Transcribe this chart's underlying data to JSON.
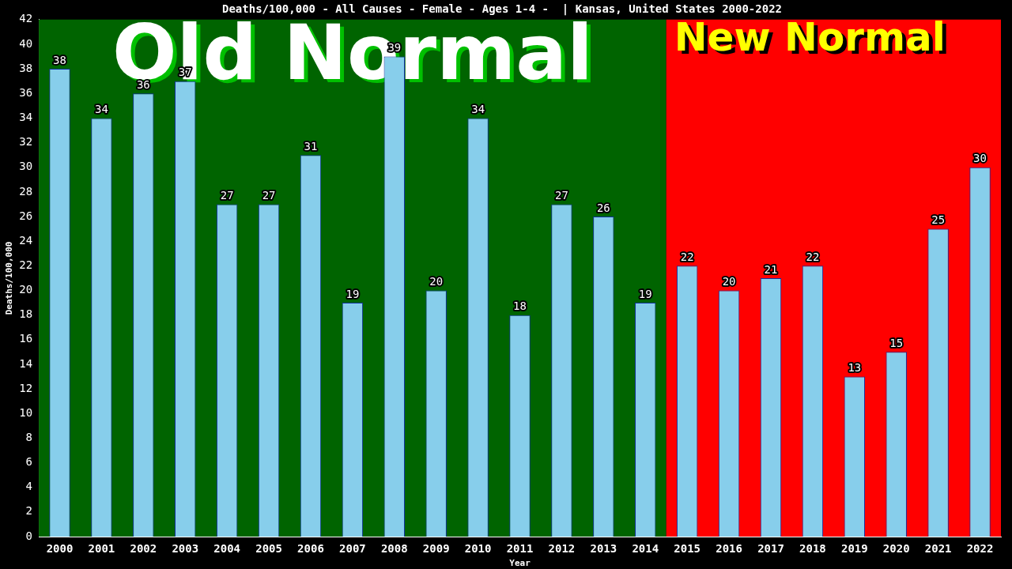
{
  "chart_data": {
    "type": "bar",
    "title": "Deaths/100,000 - All Causes - Female - Ages 1-4 -  | Kansas, United States 2000-2022",
    "xlabel": "Year",
    "ylabel": "Deaths/100,000",
    "categories": [
      "2000",
      "2001",
      "2002",
      "2003",
      "2004",
      "2005",
      "2006",
      "2007",
      "2008",
      "2009",
      "2010",
      "2011",
      "2012",
      "2013",
      "2014",
      "2015",
      "2016",
      "2017",
      "2018",
      "2019",
      "2020",
      "2021",
      "2022"
    ],
    "values": [
      38,
      34,
      36,
      37,
      27,
      27,
      31,
      19,
      39,
      20,
      34,
      18,
      27,
      26,
      19,
      22,
      20,
      21,
      22,
      13,
      15,
      25,
      30
    ],
    "color": "#87ceeb",
    "ylim": [
      0,
      42
    ],
    "yticks": [
      0,
      2,
      4,
      6,
      8,
      10,
      12,
      14,
      16,
      18,
      20,
      22,
      24,
      26,
      28,
      30,
      32,
      34,
      36,
      38,
      40,
      42
    ],
    "bands": [
      {
        "axis": "x",
        "from": "2000",
        "to": "2014",
        "label": "Old Normal",
        "color": "#006400"
      },
      {
        "axis": "x",
        "from": "2015",
        "to": "2022",
        "label": "New Normal",
        "color": "#ff0000"
      }
    ],
    "data_labels": true,
    "grid": false,
    "legend": false
  }
}
